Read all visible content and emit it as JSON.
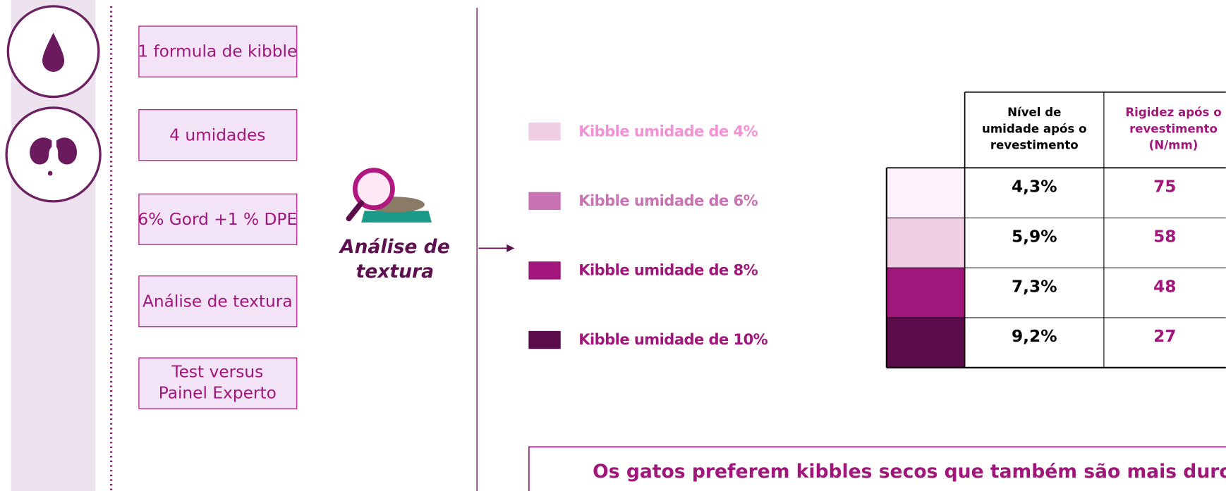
{
  "steps": [
    "1 formula de kibble",
    "4 umidades",
    "6% Gord +1 % DPE",
    "Análise de textura",
    [
      "Test versus",
      "Painel Experto"
    ]
  ],
  "analysis_title": [
    "Análise de",
    "textura"
  ],
  "legend": [
    {
      "label": "Kibble umidade de 4%",
      "color": "#f0cfe4",
      "label_color": "#f191d6"
    },
    {
      "label": "Kibble umidade de 6%",
      "color": "#c874b4",
      "label_color": "#c874b4"
    },
    {
      "label": "Kibble umidade de 8%",
      "color": "#a0167a",
      "label_color": "#a0167a"
    },
    {
      "label": "Kibble umidade de 10%",
      "color": "#5a0c4a",
      "label_color": "#a0167a"
    }
  ],
  "table": {
    "headers": [
      [
        "Nível de",
        "umidade após o",
        "revestimento"
      ],
      [
        "Rigidez após o",
        "revestimento",
        "(N/mm)"
      ]
    ],
    "rows": [
      {
        "color": "#fdf2fb",
        "humidity": "4,3%",
        "rigidity": 75
      },
      {
        "color": "#f0cfe4",
        "humidity": "5,9%",
        "rigidity": 58
      },
      {
        "color": "#a0167a",
        "humidity": "7,3%",
        "rigidity": 48
      },
      {
        "color": "#5a0c4a",
        "humidity": "9,2%",
        "rigidity": 27
      }
    ]
  },
  "conclusion": "Os gatos preferem kibbles secos que também são mais duros e m"
}
